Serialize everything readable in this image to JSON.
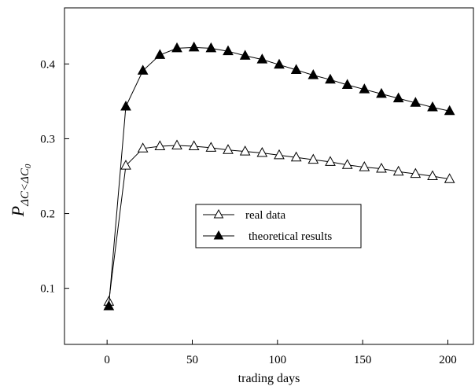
{
  "chart_data": {
    "type": "line",
    "xlabel": "trading days",
    "ylabel_main": "P",
    "ylabel_subscript": "ΔC<ΔC",
    "ylabel_subsubscript": "0",
    "xlim": [
      -25,
      215
    ],
    "ylim": [
      0.025,
      0.475
    ],
    "x_ticks": [
      0,
      50,
      100,
      150,
      200
    ],
    "y_ticks": [
      0.1,
      0.2,
      0.3,
      0.4
    ],
    "x_tick_labels": [
      "0",
      "50",
      "100",
      "150",
      "200"
    ],
    "y_tick_labels": [
      "0.1",
      "0.2",
      "0.3",
      "0.4"
    ],
    "grid": false,
    "legend_position": "center-right",
    "series": [
      {
        "name": "real data",
        "marker": "open-triangle",
        "x": [
          1,
          11,
          21,
          31,
          41,
          51,
          61,
          71,
          81,
          91,
          101,
          111,
          121,
          131,
          141,
          151,
          161,
          171,
          181,
          191,
          201
        ],
        "y": [
          0.082,
          0.264,
          0.287,
          0.29,
          0.291,
          0.29,
          0.288,
          0.285,
          0.283,
          0.281,
          0.278,
          0.275,
          0.272,
          0.269,
          0.265,
          0.262,
          0.26,
          0.256,
          0.253,
          0.25,
          0.246
        ]
      },
      {
        "name": "theoretical results",
        "marker": "filled-triangle",
        "x": [
          1,
          11,
          21,
          31,
          41,
          51,
          61,
          71,
          81,
          91,
          101,
          111,
          121,
          131,
          141,
          151,
          161,
          171,
          181,
          191,
          201
        ],
        "y": [
          0.076,
          0.343,
          0.391,
          0.412,
          0.421,
          0.422,
          0.421,
          0.417,
          0.411,
          0.406,
          0.399,
          0.392,
          0.385,
          0.379,
          0.372,
          0.366,
          0.36,
          0.354,
          0.348,
          0.342,
          0.337
        ]
      }
    ]
  }
}
